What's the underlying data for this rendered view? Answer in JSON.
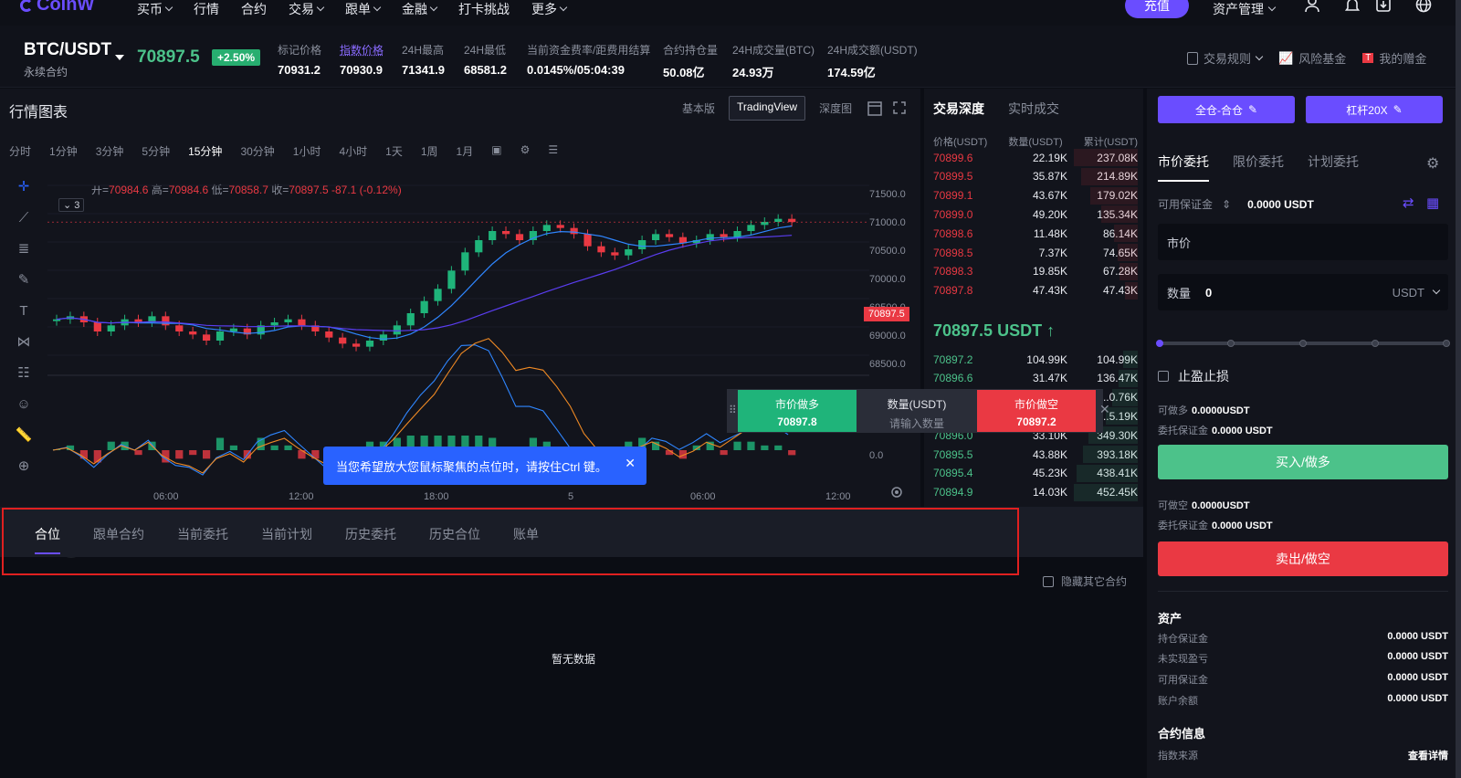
{
  "brand": "CoinW",
  "nav": {
    "items": [
      "买币",
      "行情",
      "合约",
      "交易",
      "跟单",
      "金融",
      "打卡挑战",
      "更多"
    ],
    "recharge": "充值",
    "asset_mgmt": "资产管理"
  },
  "ticker": {
    "pair": "BTC/USDT",
    "sub": "永续合约",
    "last": "70897.5",
    "change": "+2.50%",
    "stats": [
      {
        "label": "标记价格",
        "value": "70931.2"
      },
      {
        "label": "指数价格",
        "value": "70930.9"
      },
      {
        "label": "24H最高",
        "value": "71341.9"
      },
      {
        "label": "24H最低",
        "value": "68581.2"
      },
      {
        "label": "当前资金费率/距费用结算",
        "value": "0.0145%/05:04:39"
      },
      {
        "label": "合约持仓量",
        "value": "50.08亿"
      },
      {
        "label": "24H成交量(BTC)",
        "value": "24.93万"
      },
      {
        "label": "24H成交额(USDT)",
        "value": "174.59亿"
      }
    ],
    "links": [
      "交易规则",
      "风险基金",
      "我的赠金"
    ]
  },
  "chart": {
    "title": "行情图表",
    "views": [
      "基本版",
      "TradingView",
      "深度图"
    ],
    "intervals": [
      "分时",
      "1分钟",
      "3分钟",
      "5分钟",
      "15分钟",
      "30分钟",
      "1小时",
      "4小时",
      "1天",
      "1周",
      "1月"
    ],
    "ohlc": {
      "open_label": "开=",
      "open": "70984.6",
      "high_label": "高=",
      "high": "70984.6",
      "low_label": "低=",
      "low": "70858.7",
      "close_label": "收=",
      "close": "70897.5",
      "chg": "-87.1 (-0.12%)"
    },
    "collapse": "3",
    "price_ticks": [
      "71500.0",
      "71000.0",
      "70500.0",
      "70000.0",
      "69500.0",
      "69000.0",
      "68500.0",
      "0.0"
    ],
    "current_tag": "70897.5",
    "time_ticks": [
      "06:00",
      "12:00",
      "18:00",
      "5",
      "06:00",
      "12:00"
    ],
    "tv_logo": "TV"
  },
  "chart_data": {
    "type": "line",
    "title": "",
    "candles_close": [
      69300,
      69350,
      69250,
      69100,
      69200,
      69300,
      69250,
      69350,
      69200,
      69100,
      69050,
      68950,
      69100,
      69150,
      69050,
      69200,
      69250,
      69300,
      69200,
      69100,
      69000,
      68900,
      68850,
      68950,
      69050,
      69200,
      69400,
      69600,
      69800,
      70100,
      70400,
      70600,
      70750,
      70700,
      70600,
      70750,
      70850,
      70800,
      70700,
      70500,
      70400,
      70350,
      70450,
      70600,
      70700,
      70650,
      70550,
      70600,
      70700,
      70650,
      70750,
      70850,
      70900,
      70950,
      70897.5
    ]
  },
  "orderbook": {
    "tabs": [
      "交易深度",
      "实时成交"
    ],
    "headers": [
      "价格(USDT)",
      "数量(USDT)",
      "累计(USDT)"
    ],
    "asks": [
      {
        "p": "70899.6",
        "q": "22.19K",
        "t": "237.08K",
        "d": 100
      },
      {
        "p": "70899.5",
        "q": "35.87K",
        "t": "214.89K",
        "d": 88
      },
      {
        "p": "70899.1",
        "q": "43.67K",
        "t": "179.02K",
        "d": 74
      },
      {
        "p": "70899.0",
        "q": "49.20K",
        "t": "135.34K",
        "d": 57
      },
      {
        "p": "70898.6",
        "q": "11.48K",
        "t": "86.14K",
        "d": 37
      },
      {
        "p": "70898.5",
        "q": "7.37K",
        "t": "74.65K",
        "d": 32
      },
      {
        "p": "70898.3",
        "q": "19.85K",
        "t": "67.28K",
        "d": 29
      },
      {
        "p": "70897.8",
        "q": "47.43K",
        "t": "47.43K",
        "d": 20
      }
    ],
    "mid": "70897.5 USDT ↑",
    "bids": [
      {
        "p": "70897.2",
        "q": "104.99K",
        "t": "104.99K",
        "d": 23
      },
      {
        "p": "70896.6",
        "q": "31.47K",
        "t": "136.47K",
        "d": 30
      },
      {
        "p": "",
        "q": "",
        "t": "...0.76K",
        "d": 40
      },
      {
        "p": "",
        "q": "",
        "t": "...5.19K",
        "d": 50
      },
      {
        "p": "70896.0",
        "q": "33.10K",
        "t": "349.30K",
        "d": 77
      },
      {
        "p": "70895.5",
        "q": "43.88K",
        "t": "393.18K",
        "d": 86
      },
      {
        "p": "70895.4",
        "q": "45.23K",
        "t": "438.41K",
        "d": 96
      },
      {
        "p": "70894.9",
        "q": "14.03K",
        "t": "452.45K",
        "d": 100
      }
    ]
  },
  "quick_trade": {
    "long_label": "市价做多",
    "long_price": "70897.8",
    "amount_label": "数量(USDT)",
    "amount_placeholder": "请输入数量",
    "short_label": "市价做空",
    "short_price": "70897.2"
  },
  "tooltip": "当您希望放大您鼠标聚焦的点位时，请按住Ctrl 键。",
  "bottom": {
    "tabs": [
      "合位",
      "跟单合约",
      "当前委托",
      "当前计划",
      "历史委托",
      "历史合位",
      "账单"
    ],
    "hide_other": "隐藏其它合约",
    "empty": "暂无数据"
  },
  "trade": {
    "mode_btn": "全仓-合仓",
    "leverage_btn": "杠杆20X",
    "order_types": [
      "市价委托",
      "限价委托",
      "计划委托"
    ],
    "avail_label": "可用保证金",
    "avail_val": "0.0000 USDT",
    "price_field": "市价",
    "qty_label": "数量",
    "qty_val": "0",
    "qty_unit": "USDT",
    "tpsl": "止盈止损",
    "can_long_label": "可做多",
    "can_long": "0.0000USDT",
    "margin_long_label": "委托保证金",
    "margin_long": "0.0000 USDT",
    "buy": "买入/做多",
    "can_short_label": "可做空",
    "can_short": "0.0000USDT",
    "margin_short_label": "委托保证金",
    "margin_short": "0.0000 USDT",
    "sell": "卖出/做空",
    "assets_title": "资产",
    "assets": [
      {
        "k": "持仓保证金",
        "v": "0.0000 USDT"
      },
      {
        "k": "未实现盈亏",
        "v": "0.0000 USDT"
      },
      {
        "k": "可用保证金",
        "v": "0.0000 USDT"
      },
      {
        "k": "账户余额",
        "v": "0.0000 USDT"
      }
    ],
    "contract_title": "合约信息",
    "index_source": "指数来源",
    "details": "查看详情"
  }
}
